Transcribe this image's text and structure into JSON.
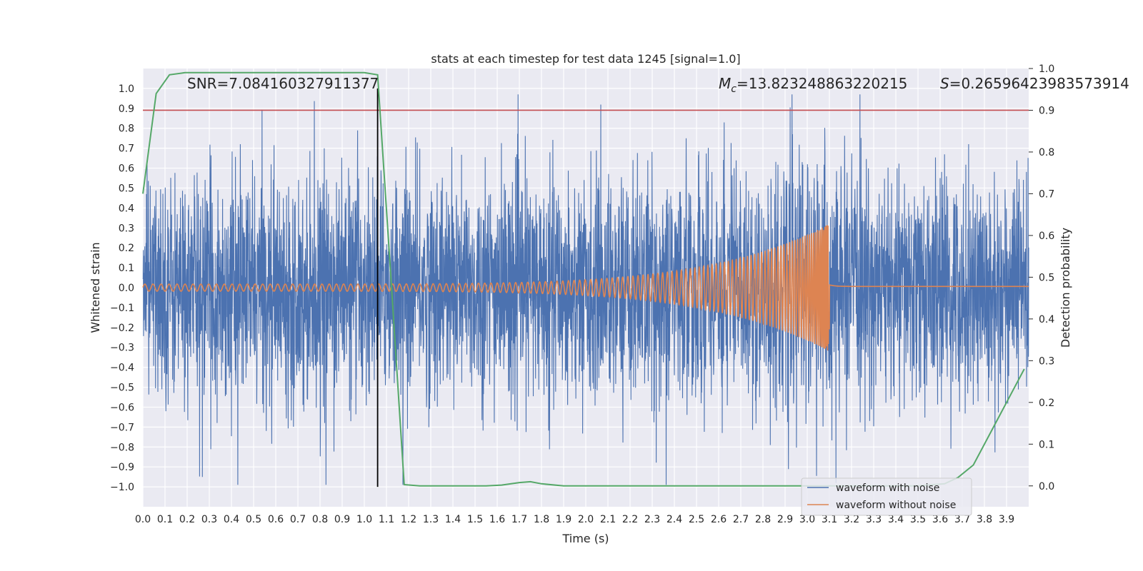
{
  "chart_data": {
    "type": "line",
    "title": "stats at each timestep for test data 1245 [signal=1.0]",
    "xlabel": "Time (s)",
    "ylabel": "Whitened strain",
    "ylabel_right": "Detection probability",
    "xlim": [
      0.0,
      4.0
    ],
    "ylim": [
      -1.1,
      1.1
    ],
    "ylim_right": [
      -0.05,
      1.0
    ],
    "x_ticks": [
      "0.0",
      "0.1",
      "0.2",
      "0.3",
      "0.4",
      "0.5",
      "0.6",
      "0.7",
      "0.8",
      "0.9",
      "1.0",
      "1.1",
      "1.2",
      "1.3",
      "1.4",
      "1.5",
      "1.6",
      "1.7",
      "1.8",
      "1.9",
      "2.0",
      "2.1",
      "2.2",
      "2.3",
      "2.4",
      "2.5",
      "2.6",
      "2.7",
      "2.8",
      "2.9",
      "3.0",
      "3.1",
      "3.2",
      "3.3",
      "3.4",
      "3.5",
      "3.6",
      "3.7",
      "3.8",
      "3.9"
    ],
    "y_ticks": [
      "1.0",
      "0.9",
      "0.8",
      "0.7",
      "0.6",
      "0.5",
      "0.4",
      "0.3",
      "0.2",
      "0.1",
      "0.0",
      "−0.1",
      "−0.2",
      "−0.3",
      "−0.4",
      "−0.5",
      "−0.6",
      "−0.7",
      "−0.8",
      "−0.9",
      "−1.0"
    ],
    "y_ticks_right": [
      "1.0",
      "0.9",
      "0.8",
      "0.7",
      "0.6",
      "0.5",
      "0.4",
      "0.3",
      "0.2",
      "0.1",
      "0.0"
    ],
    "annotations": {
      "snr": "SNR=7.084160327911377",
      "mc_symbol": "M",
      "mc_sub": "c",
      "mc_value": "=13.823248863220215",
      "s_symbol": "S",
      "s_value": "=0.26596423983573914"
    },
    "series": [
      {
        "name": "waveform with noise",
        "color": "#4c72b0",
        "description": "noisy whitened strain, amplitude roughly within [-0.9, 0.95]"
      },
      {
        "name": "waveform without noise",
        "color": "#dd8452",
        "description": "chirp with amplitude growing to ~0.32 at merger t≈3.1 s, ~0 afterwards",
        "merger_time": 3.1,
        "peak_amplitude": 0.32
      }
    ],
    "probability_series": {
      "color": "#55a868",
      "x": [
        0.0,
        0.06,
        0.12,
        0.19,
        0.25,
        0.5,
        0.8,
        1.0,
        1.06,
        1.12,
        1.18,
        1.25,
        1.4,
        1.55,
        1.62,
        1.7,
        1.75,
        1.8,
        1.9,
        2.5,
        3.0,
        3.5,
        3.62,
        3.68,
        3.75,
        3.8,
        3.9,
        3.98
      ],
      "y": [
        0.7,
        0.94,
        0.985,
        0.99,
        0.99,
        0.99,
        0.99,
        0.99,
        0.985,
        0.5,
        0.003,
        0.0,
        0.0,
        0.0,
        0.002,
        0.008,
        0.01,
        0.005,
        0.0,
        0.0,
        0.0,
        0.0,
        0.005,
        0.02,
        0.05,
        0.1,
        0.2,
        0.28
      ]
    },
    "threshold_line": {
      "value_right": 0.9,
      "color": "#c44e52"
    },
    "vertical_marker": {
      "x": 1.06,
      "color": "#000000"
    },
    "legend": {
      "position": "lower-right",
      "entries": [
        {
          "label": "waveform with noise",
          "color": "#4c72b0"
        },
        {
          "label": "waveform without noise",
          "color": "#dd8452"
        }
      ]
    },
    "grid": true,
    "plot_background": "#eaeaf2"
  }
}
